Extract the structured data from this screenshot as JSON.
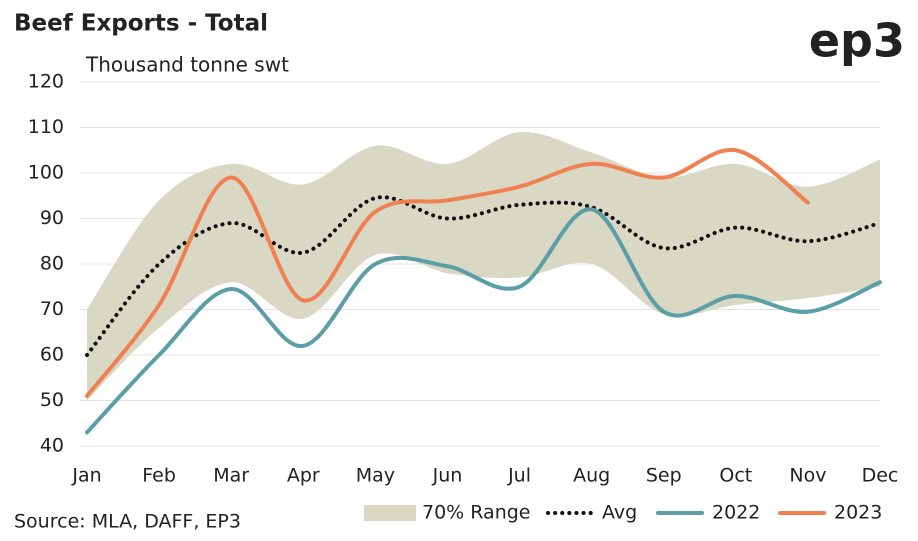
{
  "chart_data": {
    "type": "line",
    "title": "Beef Exports - Total",
    "subtitle": "Thousand tonne swt",
    "logo": "ep3",
    "source": "Source: MLA, DAFF, EP3",
    "categories": [
      "Jan",
      "Feb",
      "Mar",
      "Apr",
      "May",
      "Jun",
      "Jul",
      "Aug",
      "Sep",
      "Oct",
      "Nov",
      "Dec"
    ],
    "ylim": [
      40,
      120
    ],
    "yticks": [
      40,
      50,
      60,
      70,
      80,
      90,
      100,
      110,
      120
    ],
    "grid": true,
    "legend": "bottom",
    "series": [
      {
        "name": "70% Range",
        "type": "area",
        "color": "#d8d8c4",
        "upper": [
          70,
          94,
          102,
          97.5,
          106,
          102,
          109,
          104.5,
          99,
          102,
          97,
          103
        ],
        "lower": [
          50,
          66,
          76,
          68,
          82,
          78,
          77,
          80,
          69,
          71,
          72.5,
          75
        ]
      },
      {
        "name": "Avg",
        "type": "dotted",
        "color": "#111111",
        "values": [
          60,
          80,
          89,
          82.5,
          94.5,
          90,
          93,
          92.5,
          83.5,
          88,
          85,
          89
        ]
      },
      {
        "name": "2022",
        "type": "line",
        "color": "#5b9ea6",
        "values": [
          43,
          60,
          74.5,
          62,
          80,
          79.5,
          75,
          92,
          69.5,
          73,
          69.5,
          76
        ]
      },
      {
        "name": "2023",
        "type": "line",
        "color": "#f0804f",
        "values": [
          51,
          71,
          99,
          72,
          91.5,
          94,
          97,
          102,
          99,
          105,
          93.5,
          null
        ]
      }
    ]
  }
}
